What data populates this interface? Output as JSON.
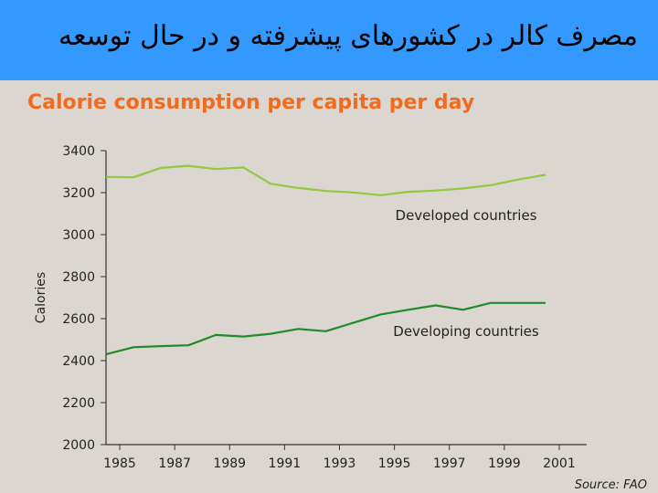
{
  "banner": {
    "title": "مصرف کالر در کشورهای پیشرفته و در حال توسعه"
  },
  "source": "Source:  FAO",
  "chart_data": {
    "type": "line",
    "title": "Calorie consumption per capita per day",
    "xlabel": "",
    "ylabel": "Calories",
    "xlim": [
      1984.5,
      2002
    ],
    "ylim": [
      2000,
      3400
    ],
    "yticks": [
      2000,
      2200,
      2400,
      2600,
      2800,
      3000,
      3200,
      3400
    ],
    "xticks": [
      1985,
      1987,
      1989,
      1991,
      1993,
      1995,
      1997,
      1999,
      2001
    ],
    "grid": false,
    "legend": "none",
    "series": [
      {
        "name": "Developed countries",
        "color": "#92c83e",
        "x": [
          1984.5,
          1985.5,
          1986.5,
          1987.5,
          1988.5,
          1989.5,
          1990.5,
          1991.5,
          1992.5,
          1993.5,
          1994.5,
          1995.5,
          1996.5,
          1997.5,
          1998.5,
          1999.5,
          2000.5
        ],
        "values": [
          3275,
          3273,
          3318,
          3328,
          3312,
          3320,
          3242,
          3222,
          3208,
          3201,
          3188,
          3204,
          3210,
          3220,
          3235,
          3262,
          3285
        ]
      },
      {
        "name": "Developing countries",
        "color": "#1e8a2a",
        "x": [
          1984.5,
          1985.5,
          1986.5,
          1987.5,
          1988.5,
          1989.5,
          1990.5,
          1991.5,
          1992.5,
          1993.5,
          1994.5,
          1995.5,
          1996.5,
          1997.5,
          1998.5,
          1999.5,
          2000.5
        ],
        "values": [
          2430,
          2464,
          2469,
          2473,
          2522,
          2515,
          2528,
          2551,
          2540,
          2580,
          2620,
          2642,
          2663,
          2642,
          2675,
          2675,
          2675
        ]
      }
    ]
  }
}
